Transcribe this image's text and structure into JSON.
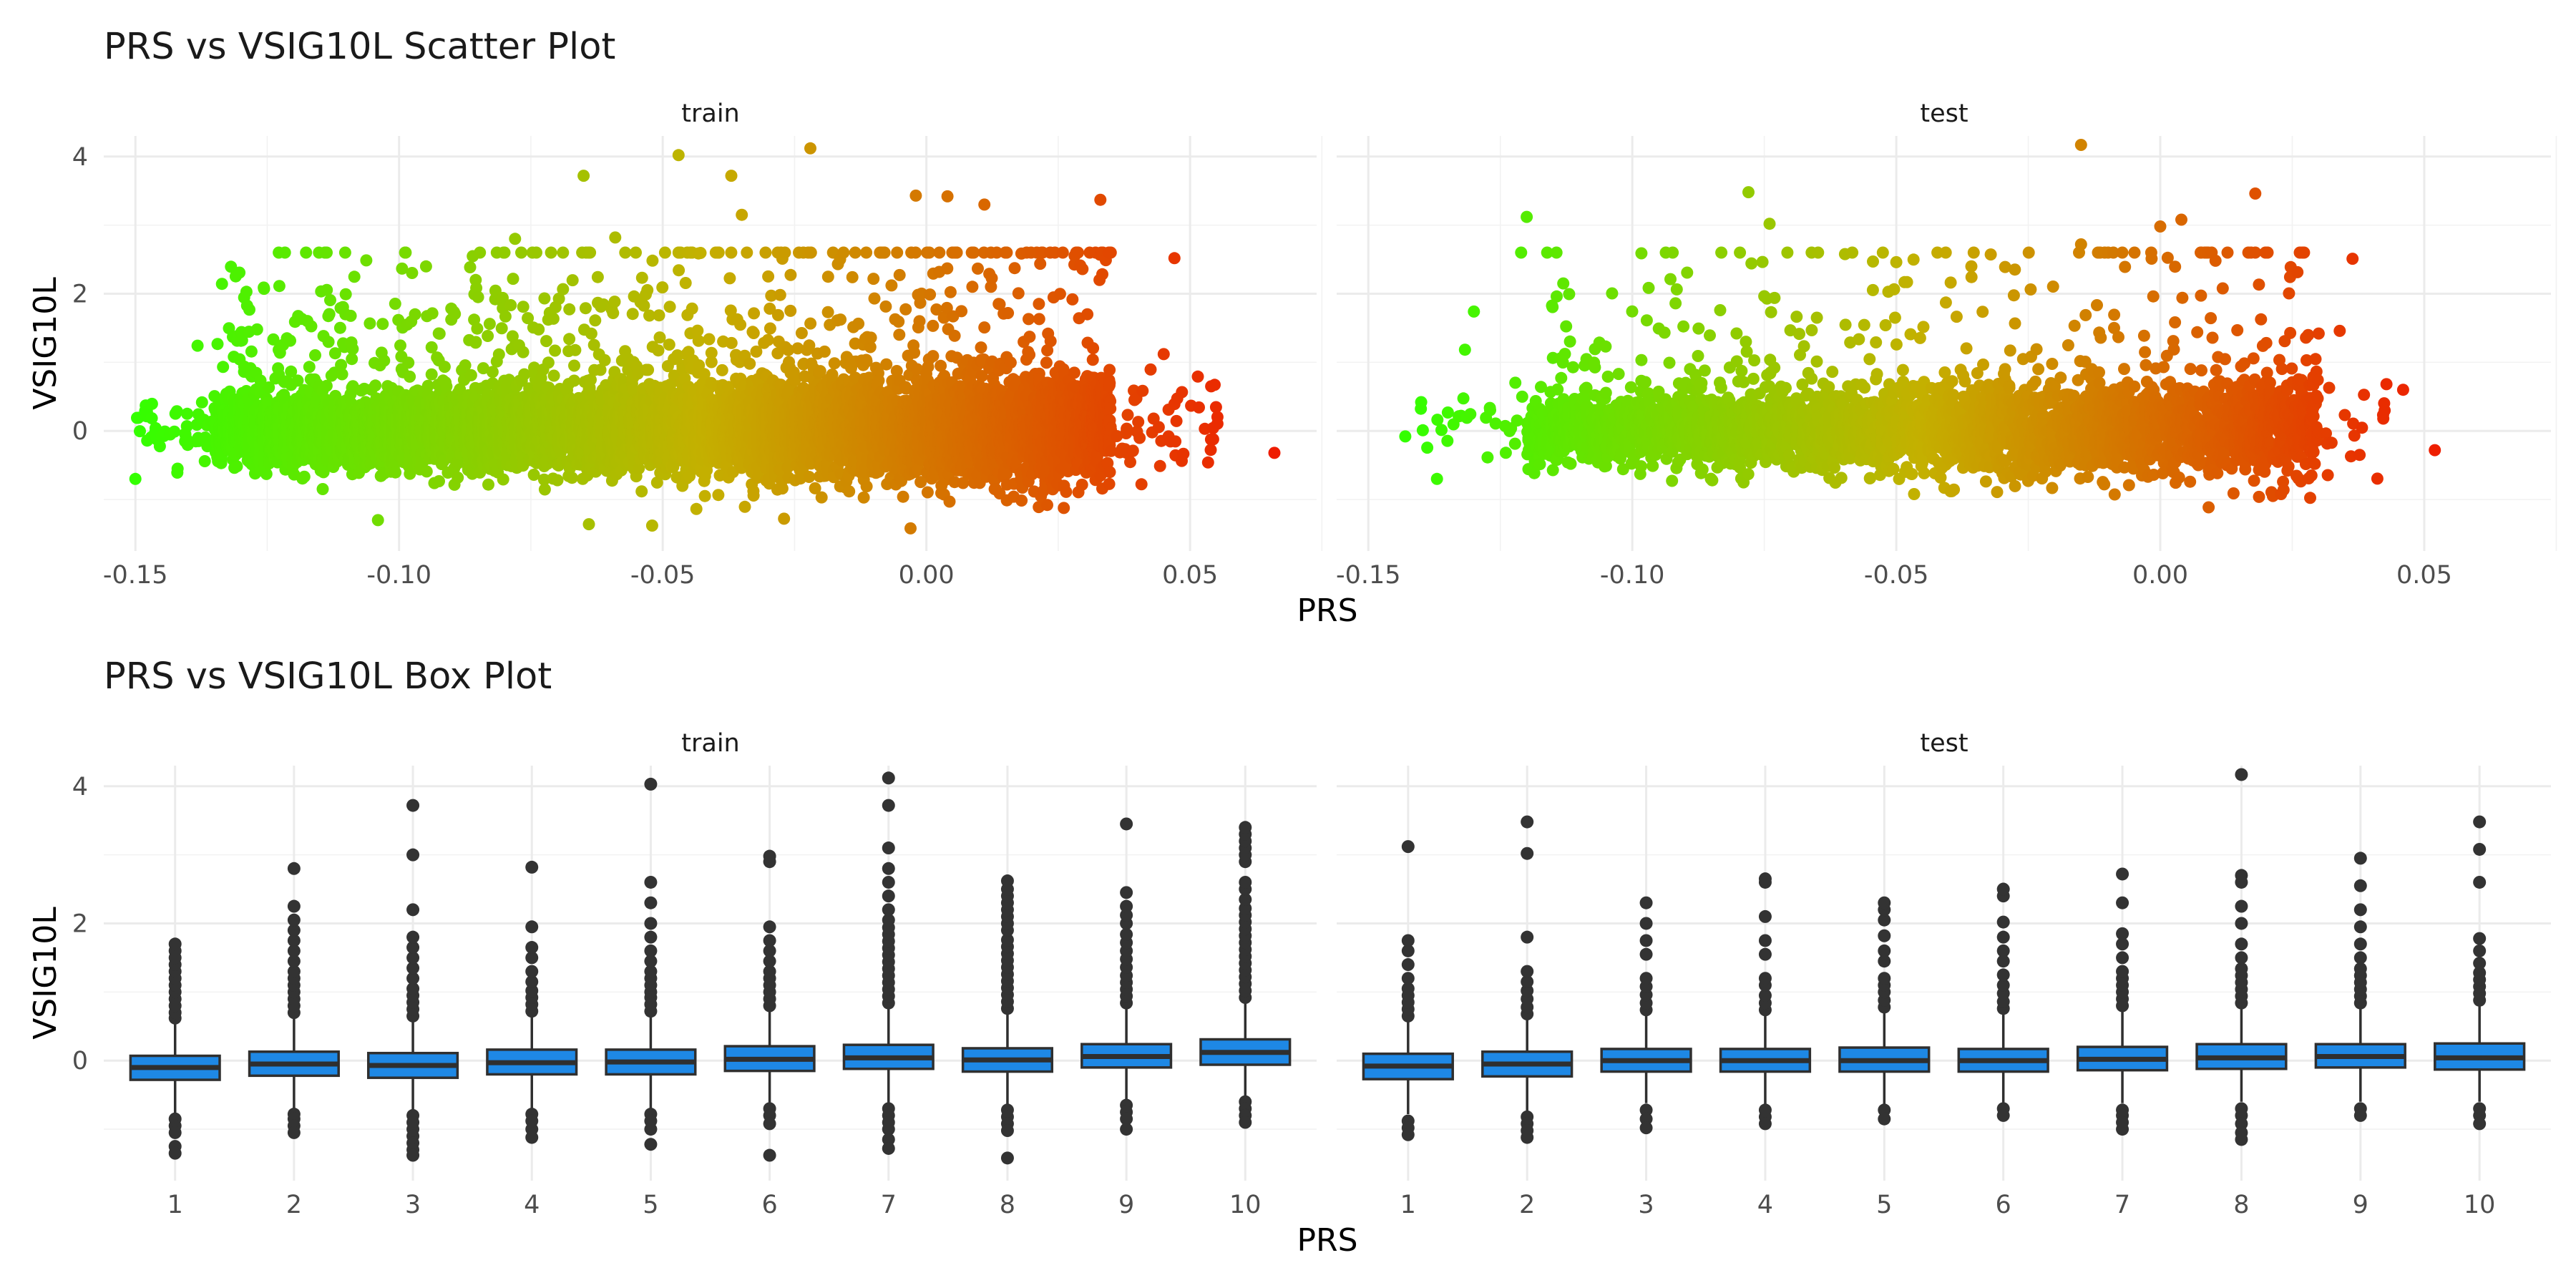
{
  "colors": {
    "low": "#33ff00",
    "mid": "#c4b000",
    "high": "#ee1c00",
    "box_fill": "#1e88e5",
    "box_line": "#2f2f2f",
    "outlier": "#333333"
  },
  "chart_data": [
    {
      "type": "scatter",
      "title": "PRS vs VSIG10L Scatter Plot",
      "xlabel": "PRS",
      "ylabel": "VSIG10L",
      "color_scale": "gradient by PRS (green → orange → red)",
      "grid": true,
      "legend": "none",
      "y_ticks": [
        "0",
        "2",
        "4"
      ],
      "y_tick_values": [
        0,
        2,
        4
      ],
      "ylim": [
        -1.75,
        4.3
      ],
      "panels": [
        {
          "name": "train",
          "x_ticks": [
            "-0.15",
            "-0.10",
            "-0.05",
            "0.00",
            "0.05"
          ],
          "x_tick_values": [
            -0.15,
            -0.1,
            -0.05,
            0.0,
            0.05
          ],
          "xlim": [
            -0.156,
            0.074
          ],
          "n_points_approx": 8000,
          "x_range": [
            -0.15,
            0.066
          ],
          "x_core_range": [
            -0.135,
            0.035
          ],
          "y_core_range": [
            -0.9,
            0.9
          ],
          "notable_points": [
            {
              "x": -0.15,
              "y": -0.7
            },
            {
              "x": -0.146,
              "y": -0.12
            },
            {
              "x": -0.142,
              "y": -0.55
            },
            {
              "x": 0.066,
              "y": -0.32
            },
            {
              "x": 0.054,
              "y": 0.65
            },
            {
              "x": 0.045,
              "y": 1.12
            },
            {
              "x": -0.047,
              "y": 4.02
            },
            {
              "x": -0.022,
              "y": 4.12
            },
            {
              "x": -0.037,
              "y": 3.72
            },
            {
              "x": -0.065,
              "y": 3.72
            },
            {
              "x": 0.033,
              "y": 3.37
            },
            {
              "x": -0.002,
              "y": 3.43
            },
            {
              "x": 0.004,
              "y": 3.42
            },
            {
              "x": 0.011,
              "y": 3.3
            },
            {
              "x": -0.035,
              "y": 3.15
            },
            {
              "x": 0.019,
              "y": 2.6
            },
            {
              "x": -0.078,
              "y": 2.8
            },
            {
              "x": -0.059,
              "y": 2.82
            },
            {
              "x": -0.047,
              "y": 2.6
            },
            {
              "x": -0.003,
              "y": -1.42
            },
            {
              "x": -0.064,
              "y": -1.36
            },
            {
              "x": -0.052,
              "y": -1.38
            },
            {
              "x": -0.104,
              "y": -1.3
            },
            {
              "x": -0.027,
              "y": -1.28
            }
          ]
        },
        {
          "name": "test",
          "x_ticks": [
            "-0.15",
            "-0.10",
            "-0.05",
            "0.00",
            "0.05"
          ],
          "x_tick_values": [
            -0.15,
            -0.1,
            -0.05,
            0.0,
            0.05
          ],
          "xlim": [
            -0.156,
            0.074
          ],
          "n_points_approx": 3500,
          "x_range": [
            -0.143,
            0.053
          ],
          "x_core_range": [
            -0.12,
            0.03
          ],
          "y_core_range": [
            -0.9,
            0.9
          ],
          "notable_points": [
            {
              "x": -0.143,
              "y": -0.08
            },
            {
              "x": -0.137,
              "y": -0.7
            },
            {
              "x": -0.14,
              "y": 0.42
            },
            {
              "x": -0.12,
              "y": 3.12
            },
            {
              "x": -0.078,
              "y": 3.48
            },
            {
              "x": -0.074,
              "y": 3.02
            },
            {
              "x": -0.015,
              "y": 4.17
            },
            {
              "x": 0.018,
              "y": 3.46
            },
            {
              "x": 0.004,
              "y": 3.08
            },
            {
              "x": 0.0,
              "y": 2.98
            },
            {
              "x": 0.018,
              "y": 2.6
            },
            {
              "x": -0.015,
              "y": 2.72
            },
            {
              "x": 0.052,
              "y": -0.28
            },
            {
              "x": 0.046,
              "y": 0.6
            },
            {
              "x": 0.03,
              "y": 1.42
            },
            {
              "x": -0.13,
              "y": 1.74
            },
            {
              "x": -0.05,
              "y": 2.46
            }
          ]
        }
      ]
    },
    {
      "type": "box",
      "title": "PRS vs VSIG10L Box Plot",
      "xlabel": "PRS",
      "ylabel": "VSIG10L",
      "categories": [
        "1",
        "2",
        "3",
        "4",
        "5",
        "6",
        "7",
        "8",
        "9",
        "10"
      ],
      "y_ticks": [
        "0",
        "2",
        "4"
      ],
      "y_tick_values": [
        0,
        2,
        4
      ],
      "ylim": [
        -1.75,
        4.3
      ],
      "grid": true,
      "legend": "none",
      "panels": [
        {
          "name": "train",
          "boxes": [
            {
              "q1": -0.28,
              "median": -0.1,
              "q3": 0.07,
              "whisker_low": -0.78,
              "whisker_high": 0.58,
              "outliers_high": [
                0.62,
                0.7,
                0.8,
                0.9,
                1.0,
                1.1,
                1.2,
                1.3,
                1.4,
                1.5,
                1.6,
                1.7
              ],
              "outliers_low": [
                -0.85,
                -0.95,
                -1.05,
                -1.25,
                -1.35
              ]
            },
            {
              "q1": -0.22,
              "median": -0.05,
              "q3": 0.13,
              "whisker_low": -0.72,
              "whisker_high": 0.66,
              "outliers_high": [
                0.7,
                0.8,
                0.9,
                1.0,
                1.1,
                1.2,
                1.3,
                1.45,
                1.6,
                1.75,
                1.9,
                2.05,
                2.25,
                2.8
              ],
              "outliers_low": [
                -0.78,
                -0.85,
                -0.95,
                -1.05
              ]
            },
            {
              "q1": -0.25,
              "median": -0.07,
              "q3": 0.11,
              "whisker_low": -0.74,
              "whisker_high": 0.6,
              "outliers_high": [
                0.65,
                0.75,
                0.85,
                0.95,
                1.05,
                1.2,
                1.35,
                1.5,
                1.65,
                1.8,
                2.2,
                3.0,
                3.72
              ],
              "outliers_low": [
                -0.8,
                -0.9,
                -1.0,
                -1.1,
                -1.2,
                -1.3,
                -1.38
              ]
            },
            {
              "q1": -0.2,
              "median": -0.03,
              "q3": 0.16,
              "whisker_low": -0.7,
              "whisker_high": 0.66,
              "outliers_high": [
                0.72,
                0.82,
                0.92,
                1.02,
                1.15,
                1.3,
                1.5,
                1.65,
                1.95,
                2.82
              ],
              "outliers_low": [
                -0.78,
                -0.88,
                -1.0,
                -1.12
              ]
            },
            {
              "q1": -0.2,
              "median": -0.02,
              "q3": 0.16,
              "whisker_low": -0.7,
              "whisker_high": 0.66,
              "outliers_high": [
                0.72,
                0.82,
                0.92,
                1.0,
                1.1,
                1.2,
                1.3,
                1.45,
                1.6,
                1.8,
                2.0,
                2.3,
                2.6,
                4.03
              ],
              "outliers_low": [
                -0.78,
                -0.88,
                -1.0,
                -1.22
              ]
            },
            {
              "q1": -0.15,
              "median": 0.02,
              "q3": 0.21,
              "whisker_low": -0.64,
              "whisker_high": 0.74,
              "outliers_high": [
                0.8,
                0.9,
                1.0,
                1.1,
                1.2,
                1.3,
                1.45,
                1.6,
                1.75,
                1.95,
                2.9,
                2.98
              ],
              "outliers_low": [
                -0.7,
                -0.8,
                -0.92,
                -1.38
              ]
            },
            {
              "q1": -0.12,
              "median": 0.04,
              "q3": 0.23,
              "whisker_low": -0.62,
              "whisker_high": 0.78,
              "outliers_high": [
                0.84,
                0.94,
                1.04,
                1.14,
                1.24,
                1.34,
                1.44,
                1.54,
                1.64,
                1.74,
                1.84,
                1.94,
                2.05,
                2.2,
                2.4,
                2.6,
                2.8,
                3.1,
                3.72,
                4.12
              ],
              "outliers_low": [
                -0.7,
                -0.8,
                -0.9,
                -1.0,
                -1.15,
                -1.28
              ]
            },
            {
              "q1": -0.16,
              "median": 0.01,
              "q3": 0.18,
              "whisker_low": -0.66,
              "whisker_high": 0.7,
              "outliers_high": [
                0.76,
                0.86,
                0.96,
                1.06,
                1.16,
                1.26,
                1.36,
                1.46,
                1.56,
                1.66,
                1.76,
                1.9,
                2.0,
                2.1,
                2.2,
                2.3,
                2.4,
                2.5,
                2.62
              ],
              "outliers_low": [
                -0.72,
                -0.82,
                -0.92,
                -1.02,
                -1.42
              ]
            },
            {
              "q1": -0.1,
              "median": 0.06,
              "q3": 0.24,
              "whisker_low": -0.58,
              "whisker_high": 0.78,
              "outliers_high": [
                0.84,
                0.94,
                1.04,
                1.14,
                1.24,
                1.36,
                1.48,
                1.6,
                1.72,
                1.84,
                2.0,
                2.12,
                2.25,
                2.45,
                3.45
              ],
              "outliers_low": [
                -0.65,
                -0.75,
                -0.85,
                -1.0
              ]
            },
            {
              "q1": -0.06,
              "median": 0.12,
              "q3": 0.31,
              "whisker_low": -0.55,
              "whisker_high": 0.86,
              "outliers_high": [
                0.92,
                1.02,
                1.12,
                1.22,
                1.32,
                1.42,
                1.52,
                1.62,
                1.72,
                1.82,
                1.92,
                2.02,
                2.12,
                2.22,
                2.35,
                2.5,
                2.6,
                2.9,
                3.0,
                3.1,
                3.2,
                3.3,
                3.4
              ],
              "outliers_low": [
                -0.6,
                -0.7,
                -0.8,
                -0.9
              ]
            }
          ]
        },
        {
          "name": "test",
          "boxes": [
            {
              "q1": -0.27,
              "median": -0.08,
              "q3": 0.1,
              "whisker_low": -0.78,
              "whisker_high": 0.6,
              "outliers_high": [
                0.65,
                0.75,
                0.85,
                0.95,
                1.05,
                1.2,
                1.4,
                1.6,
                1.75,
                3.12
              ],
              "outliers_low": [
                -0.88,
                -0.98,
                -1.08
              ]
            },
            {
              "q1": -0.23,
              "median": -0.05,
              "q3": 0.13,
              "whisker_low": -0.75,
              "whisker_high": 0.62,
              "outliers_high": [
                0.68,
                0.78,
                0.9,
                1.02,
                1.15,
                1.3,
                1.8,
                3.02,
                3.48
              ],
              "outliers_low": [
                -0.82,
                -0.92,
                -1.02,
                -1.12
              ]
            },
            {
              "q1": -0.16,
              "median": 0.0,
              "q3": 0.17,
              "whisker_low": -0.62,
              "whisker_high": 0.68,
              "outliers_high": [
                0.74,
                0.84,
                0.96,
                1.08,
                1.2,
                1.55,
                1.75,
                2.0,
                2.3
              ],
              "outliers_low": [
                -0.72,
                -0.85,
                -0.98
              ]
            },
            {
              "q1": -0.16,
              "median": 0.0,
              "q3": 0.17,
              "whisker_low": -0.64,
              "whisker_high": 0.68,
              "outliers_high": [
                0.74,
                0.84,
                0.95,
                1.1,
                1.2,
                1.55,
                1.75,
                2.1,
                2.6,
                2.65
              ],
              "outliers_low": [
                -0.72,
                -0.82,
                -0.92
              ]
            },
            {
              "q1": -0.16,
              "median": 0.0,
              "q3": 0.19,
              "whisker_low": -0.64,
              "whisker_high": 0.72,
              "outliers_high": [
                0.78,
                0.88,
                1.0,
                1.1,
                1.2,
                1.45,
                1.6,
                1.82,
                2.05,
                2.2,
                2.3
              ],
              "outliers_low": [
                -0.72,
                -0.85
              ]
            },
            {
              "q1": -0.16,
              "median": 0.0,
              "q3": 0.17,
              "whisker_low": -0.62,
              "whisker_high": 0.7,
              "outliers_high": [
                0.76,
                0.86,
                0.98,
                1.1,
                1.25,
                1.45,
                1.6,
                1.8,
                2.02,
                2.4,
                2.5
              ],
              "outliers_low": [
                -0.7,
                -0.8
              ]
            },
            {
              "q1": -0.14,
              "median": 0.02,
              "q3": 0.2,
              "whisker_low": -0.62,
              "whisker_high": 0.74,
              "outliers_high": [
                0.8,
                0.9,
                1.0,
                1.1,
                1.2,
                1.3,
                1.5,
                1.7,
                1.85,
                2.3,
                2.72
              ],
              "outliers_low": [
                -0.72,
                -0.8,
                -0.9,
                -1.0
              ]
            },
            {
              "q1": -0.12,
              "median": 0.04,
              "q3": 0.24,
              "whisker_low": -0.6,
              "whisker_high": 0.78,
              "outliers_high": [
                0.84,
                0.94,
                1.04,
                1.14,
                1.24,
                1.34,
                1.5,
                1.7,
                2.0,
                2.25,
                2.6,
                2.7,
                4.17
              ],
              "outliers_low": [
                -0.7,
                -0.8,
                -0.92,
                -1.05,
                -1.15
              ]
            },
            {
              "q1": -0.1,
              "median": 0.06,
              "q3": 0.24,
              "whisker_low": -0.6,
              "whisker_high": 0.78,
              "outliers_high": [
                0.84,
                0.94,
                1.04,
                1.14,
                1.24,
                1.34,
                1.5,
                1.7,
                1.95,
                2.2,
                2.55,
                2.95
              ],
              "outliers_low": [
                -0.7,
                -0.8
              ]
            },
            {
              "q1": -0.13,
              "median": 0.04,
              "q3": 0.25,
              "whisker_low": -0.6,
              "whisker_high": 0.82,
              "outliers_high": [
                0.88,
                0.98,
                1.08,
                1.18,
                1.28,
                1.42,
                1.6,
                1.78,
                2.6,
                3.08,
                3.48
              ],
              "outliers_low": [
                -0.7,
                -0.8,
                -0.92
              ]
            }
          ]
        }
      ]
    }
  ]
}
